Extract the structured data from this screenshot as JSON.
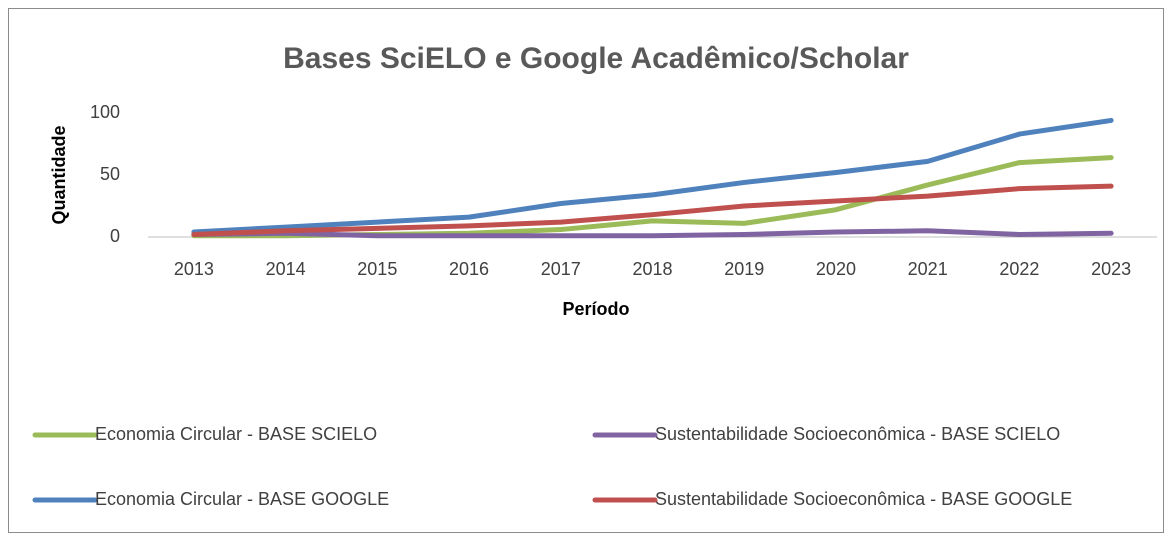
{
  "chart_data": {
    "type": "line",
    "title": "Bases SciELO e Google Acadêmico/Scholar",
    "x_label": "Período",
    "y_label": "Quantidade",
    "categories": [
      "2013",
      "2014",
      "2015",
      "2016",
      "2017",
      "2018",
      "2019",
      "2020",
      "2021",
      "2022",
      "2023"
    ],
    "series": [
      {
        "name": "Economia Circular - BASE SCIELO",
        "color": "#9bbb59",
        "values": [
          1,
          1,
          2,
          3,
          6,
          13,
          11,
          22,
          42,
          60,
          64
        ]
      },
      {
        "name": "Sustentabilidade Socioeconômica - BASE SCIELO",
        "color": "#8064a2",
        "values": [
          2,
          3,
          1,
          1,
          1,
          1,
          2,
          4,
          5,
          2,
          3
        ]
      },
      {
        "name": "Economia Circular - BASE GOOGLE",
        "color": "#4f81bd",
        "values": [
          4,
          8,
          12,
          16,
          27,
          34,
          44,
          52,
          61,
          83,
          94
        ]
      },
      {
        "name": "Sustentabilidade Socioeconômica - BASE GOOGLE",
        "color": "#c0504d",
        "values": [
          2,
          5,
          7,
          9,
          12,
          18,
          25,
          29,
          33,
          39,
          41
        ]
      }
    ],
    "ylim": [
      0,
      100
    ],
    "yticks": [
      0,
      50,
      100
    ],
    "grid": false,
    "legend": "bottom"
  }
}
